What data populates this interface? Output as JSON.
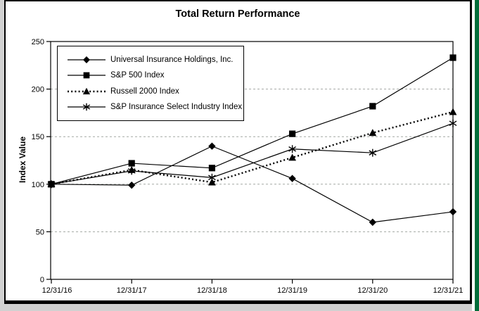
{
  "frame": {
    "page_dither_color": "#b9b9b9",
    "chart_border_color": "#000000",
    "chart_background": "#ffffff",
    "right_edge_strip_color": "#00a651"
  },
  "chart_data": {
    "type": "line",
    "title": "Total Return Performance",
    "xlabel": "",
    "ylabel": "Index Value",
    "ylim": [
      0,
      250
    ],
    "yticks": [
      0,
      50,
      100,
      150,
      200,
      250
    ],
    "grid": "horizontal dashed gridlines at 50/100/150/200",
    "gridline_color": "#a3a8a3",
    "axis_color": "#000000",
    "legend_position": "top-left inside plot, boxed",
    "categories": [
      "12/31/16",
      "12/31/17",
      "12/31/18",
      "12/31/19",
      "12/31/20",
      "12/31/21"
    ],
    "series": [
      {
        "name": "Universal Insurance Holdings, Inc.",
        "marker": "diamond",
        "line": "solid",
        "color": "#000000",
        "values": [
          100,
          99,
          140,
          106,
          60,
          71
        ]
      },
      {
        "name": "S&P 500 Index",
        "marker": "square",
        "line": "solid",
        "color": "#000000",
        "values": [
          100,
          122,
          117,
          153,
          182,
          233
        ]
      },
      {
        "name": "Russell 2000 Index",
        "marker": "triangle",
        "line": "dotted",
        "color": "#000000",
        "values": [
          100,
          115,
          102,
          128,
          154,
          176
        ]
      },
      {
        "name": "S&P Insurance Select Industry Index",
        "marker": "asterisk",
        "line": "solid",
        "color": "#000000",
        "values": [
          100,
          114,
          107,
          137,
          133,
          164
        ]
      }
    ]
  }
}
